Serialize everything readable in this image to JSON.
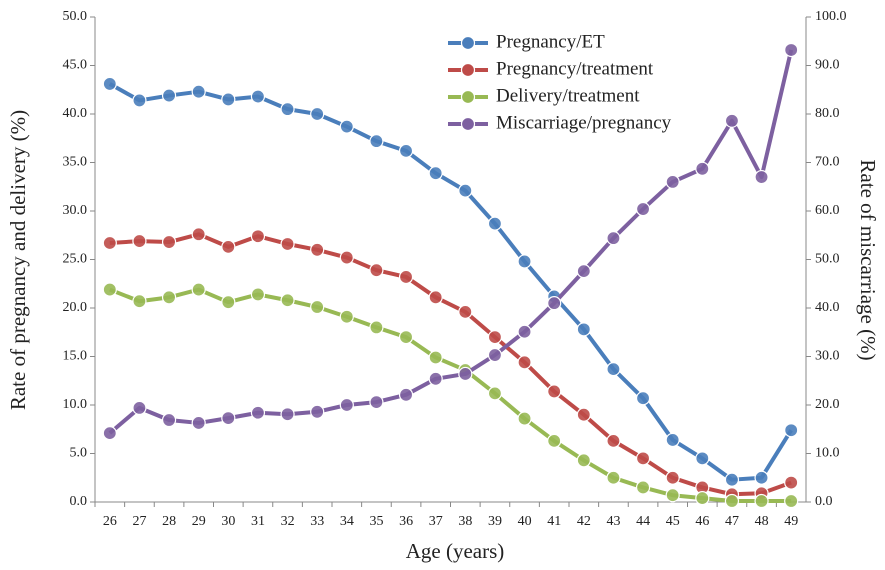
{
  "chart_data": {
    "type": "line",
    "x_label": "Age (years)",
    "y_label": "Rate of pregnancy and delivery (%)",
    "y2_label": "Rate of miscarriage (%)",
    "categories": [
      "26",
      "27",
      "28",
      "29",
      "30",
      "31",
      "32",
      "33",
      "34",
      "35",
      "36",
      "37",
      "38",
      "39",
      "40",
      "41",
      "42",
      "43",
      "44",
      "45",
      "46",
      "47",
      "48",
      "49"
    ],
    "ylim": [
      0,
      50
    ],
    "yticks": [
      {
        "value": 0,
        "label": "0.0"
      },
      {
        "value": 5,
        "label": "5.0"
      },
      {
        "value": 10,
        "label": "10.0"
      },
      {
        "value": 15,
        "label": "15.0"
      },
      {
        "value": 20,
        "label": "20.0"
      },
      {
        "value": 25,
        "label": "25.0"
      },
      {
        "value": 30,
        "label": "30.0"
      },
      {
        "value": 35,
        "label": "35.0"
      },
      {
        "value": 40,
        "label": "40.0"
      },
      {
        "value": 45,
        "label": "45.0"
      },
      {
        "value": 50,
        "label": "50.0"
      }
    ],
    "y2lim": [
      0,
      100
    ],
    "y2ticks": [
      {
        "value": 0,
        "label": "0.0"
      },
      {
        "value": 10,
        "label": "10.0"
      },
      {
        "value": 20,
        "label": "20.0"
      },
      {
        "value": 30,
        "label": "30.0"
      },
      {
        "value": 40,
        "label": "40.0"
      },
      {
        "value": 50,
        "label": "50.0"
      },
      {
        "value": 60,
        "label": "60.0"
      },
      {
        "value": 70,
        "label": "70.0"
      },
      {
        "value": 80,
        "label": "80.0"
      },
      {
        "value": 90,
        "label": "90.0"
      },
      {
        "value": 100,
        "label": "100.0"
      }
    ],
    "grid": false,
    "legend": "top",
    "series": [
      {
        "name": "Pregnancy/ET",
        "color": "#4a7ebb",
        "values": [
          43.1,
          41.4,
          41.9,
          42.3,
          41.5,
          41.8,
          40.5,
          40.0,
          38.7,
          37.2,
          36.2,
          33.9,
          32.1,
          28.7,
          24.8,
          21.2,
          17.8,
          13.7,
          10.7,
          6.4,
          4.5,
          2.3,
          2.5,
          7.4
        ]
      },
      {
        "name": "Pregnancy/treatment",
        "color": "#be4b48",
        "values": [
          26.7,
          26.9,
          26.8,
          27.6,
          26.3,
          27.4,
          26.6,
          26.0,
          25.2,
          23.9,
          23.2,
          21.1,
          19.6,
          17.0,
          14.4,
          11.4,
          9.0,
          6.3,
          4.5,
          2.5,
          1.5,
          0.8,
          0.9,
          2.0
        ]
      },
      {
        "name": "Delivery/treatment",
        "color": "#98b954",
        "values": [
          21.9,
          20.7,
          21.1,
          21.9,
          20.6,
          21.4,
          20.8,
          20.1,
          19.1,
          18.0,
          17.0,
          14.9,
          13.6,
          11.2,
          8.6,
          6.3,
          4.3,
          2.5,
          1.5,
          0.7,
          0.4,
          0.1,
          0.1,
          0.1
        ]
      },
      {
        "name": "Miscarriage/pregnancy",
        "color": "#7d60a0",
        "axis": "y2",
        "values": [
          14.2,
          19.4,
          16.9,
          16.3,
          17.3,
          18.4,
          18.1,
          18.6,
          20.0,
          20.6,
          22.1,
          25.4,
          26.4,
          30.3,
          35.1,
          41.0,
          47.6,
          54.4,
          60.4,
          66.0,
          68.7,
          78.6,
          67.0,
          93.2
        ]
      }
    ]
  }
}
